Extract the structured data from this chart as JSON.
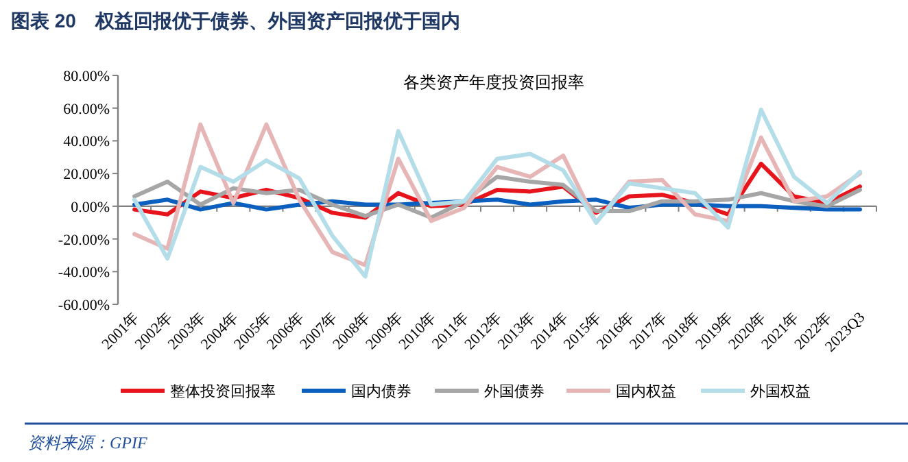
{
  "chart_data": {
    "type": "line",
    "title": "图表 20　权益回报优于债券、外国资产回报优于国内",
    "subtitle": "各类资产年度投资回报率",
    "categories": [
      "2001年",
      "2002年",
      "2003年",
      "2004年",
      "2005年",
      "2006年",
      "2007年",
      "2008年",
      "2009年",
      "2010年",
      "2011年",
      "2012年",
      "2013年",
      "2014年",
      "2015年",
      "2016年",
      "2017年",
      "2018年",
      "2019年",
      "2020年",
      "2021年",
      "2022年",
      "2023Q3"
    ],
    "series": [
      {
        "name": "整体投资回报率",
        "color": "#e8141c",
        "values": [
          -2,
          -5,
          9,
          5,
          10,
          5,
          -4,
          -7,
          8,
          0,
          1,
          10,
          9,
          12,
          -4,
          6,
          7,
          2,
          -5,
          26,
          6,
          2,
          12
        ]
      },
      {
        "name": "国内债券",
        "color": "#0a5fbf",
        "values": [
          1,
          4,
          -2,
          2,
          -2,
          1,
          3,
          1,
          1,
          2,
          3,
          4,
          1,
          3,
          4,
          -1,
          1,
          1,
          0,
          0,
          -1,
          -2,
          -2
        ]
      },
      {
        "name": "外国债券",
        "color": "#a6a6a6",
        "values": [
          6,
          15,
          1,
          11,
          8,
          10,
          1,
          -6,
          1,
          -7,
          3,
          18,
          15,
          13,
          -3,
          -3,
          3,
          3,
          4,
          8,
          3,
          0,
          10
        ]
      },
      {
        "name": "国内权益",
        "color": "#e6b5b5",
        "values": [
          -17,
          -26,
          50,
          2,
          50,
          4,
          -28,
          -36,
          29,
          -9,
          -1,
          24,
          18,
          31,
          -10,
          15,
          16,
          -5,
          -9,
          42,
          3,
          6,
          20
        ]
      },
      {
        "name": "外国权益",
        "color": "#b3dde8",
        "values": [
          4,
          -32,
          24,
          15,
          28,
          17,
          -18,
          -43,
          46,
          1,
          3,
          29,
          32,
          22,
          -10,
          14,
          11,
          8,
          -13,
          59,
          18,
          2,
          21
        ]
      }
    ],
    "ylim": [
      -60,
      80
    ],
    "yticks": [
      {
        "value": 80,
        "label": "80.00%"
      },
      {
        "value": 60,
        "label": "60.00%"
      },
      {
        "value": 40,
        "label": "40.00%"
      },
      {
        "value": 20,
        "label": "20.00%"
      },
      {
        "value": 0,
        "label": "0.00%"
      },
      {
        "value": -20,
        "label": "-20.00%"
      },
      {
        "value": -40,
        "label": "-40.00%"
      },
      {
        "value": -60,
        "label": "-60.00%"
      }
    ],
    "legend": "bottom",
    "marker": "none",
    "line_style": "solid",
    "annotations": [
      "资料来源：GPIF"
    ]
  }
}
